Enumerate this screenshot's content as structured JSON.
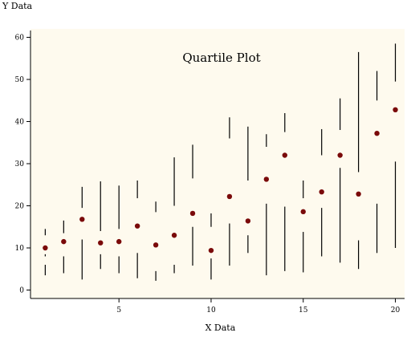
{
  "chart_data": {
    "type": "scatter",
    "title": "Quartile Plot",
    "xlabel": "X Data",
    "ylabel": "Y Data",
    "xlim": [
      0.2,
      20.5
    ],
    "ylim": [
      -2,
      62
    ],
    "xticks": [
      5,
      10,
      15,
      20
    ],
    "yticks": [
      0,
      10,
      20,
      30,
      40,
      50,
      60
    ],
    "grid": false,
    "plot_background": "#fefaee",
    "series": [
      {
        "marker_color": "#7a0a0a",
        "line_color": "#000000",
        "points": [
          {
            "x": 1,
            "median": 10.0,
            "whiskers": [
              [
                3.5,
                6.0
              ],
              [
                8.0,
                8.5
              ],
              [
                13.0,
                14.5
              ]
            ]
          },
          {
            "x": 2,
            "median": 11.5,
            "whiskers": [
              [
                4.0,
                8.0
              ],
              [
                13.5,
                16.5
              ]
            ]
          },
          {
            "x": 3,
            "median": 16.8,
            "whiskers": [
              [
                2.5,
                12.0
              ],
              [
                19.5,
                24.5
              ]
            ]
          },
          {
            "x": 4,
            "median": 11.2,
            "whiskers": [
              [
                5.0,
                8.5
              ],
              [
                14.0,
                25.8
              ]
            ]
          },
          {
            "x": 5,
            "median": 11.5,
            "whiskers": [
              [
                4.0,
                8.0
              ],
              [
                14.5,
                24.8
              ]
            ]
          },
          {
            "x": 6,
            "median": 15.2,
            "whiskers": [
              [
                2.8,
                8.8
              ],
              [
                21.8,
                26.0
              ]
            ]
          },
          {
            "x": 7,
            "median": 10.7,
            "whiskers": [
              [
                2.2,
                4.5
              ],
              [
                18.5,
                21.0
              ]
            ]
          },
          {
            "x": 8,
            "median": 13.0,
            "whiskers": [
              [
                4.0,
                6.0
              ],
              [
                20.0,
                31.5
              ]
            ]
          },
          {
            "x": 9,
            "median": 18.2,
            "whiskers": [
              [
                5.8,
                15.0
              ],
              [
                26.5,
                34.5
              ]
            ]
          },
          {
            "x": 10,
            "median": 9.4,
            "whiskers": [
              [
                2.5,
                7.5
              ],
              [
                15.0,
                18.2
              ]
            ]
          },
          {
            "x": 11,
            "median": 22.2,
            "whiskers": [
              [
                5.8,
                15.8
              ],
              [
                36.0,
                41.0
              ]
            ]
          },
          {
            "x": 12,
            "median": 16.4,
            "whiskers": [
              [
                8.8,
                13.0
              ],
              [
                26.0,
                38.8
              ]
            ]
          },
          {
            "x": 13,
            "median": 26.3,
            "whiskers": [
              [
                3.5,
                20.5
              ],
              [
                34.0,
                37.0
              ]
            ]
          },
          {
            "x": 14,
            "median": 32.0,
            "whiskers": [
              [
                4.5,
                19.8
              ],
              [
                37.5,
                42.0
              ]
            ]
          },
          {
            "x": 15,
            "median": 18.6,
            "whiskers": [
              [
                4.2,
                13.8
              ],
              [
                21.8,
                26.0
              ]
            ]
          },
          {
            "x": 16,
            "median": 23.3,
            "whiskers": [
              [
                8.0,
                19.5
              ],
              [
                32.0,
                38.2
              ]
            ]
          },
          {
            "x": 17,
            "median": 32.0,
            "whiskers": [
              [
                6.5,
                29.0
              ],
              [
                38.0,
                45.5
              ]
            ]
          },
          {
            "x": 18,
            "median": 22.8,
            "whiskers": [
              [
                5.0,
                11.8
              ],
              [
                28.0,
                56.5
              ]
            ]
          },
          {
            "x": 19,
            "median": 37.2,
            "whiskers": [
              [
                8.8,
                20.5
              ],
              [
                45.0,
                52.0
              ]
            ]
          },
          {
            "x": 20,
            "median": 42.8,
            "whiskers": [
              [
                10.0,
                30.5
              ],
              [
                49.5,
                58.5
              ]
            ]
          }
        ]
      }
    ]
  }
}
